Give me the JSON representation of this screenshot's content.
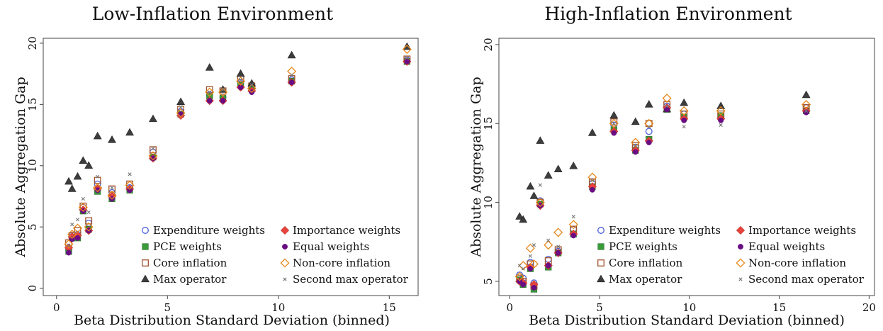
{
  "chart_data": [
    {
      "type": "scatter",
      "title": "Low-Inflation Environment",
      "xlabel": "Beta Distribution Standard Deviation (binned)",
      "ylabel": "Absolute Aggregation Gap",
      "xlim": [
        -0.6,
        16.3
      ],
      "ylim": [
        -0.6,
        20.4
      ],
      "xticks": [
        0,
        5,
        10,
        15
      ],
      "yticks": [
        0,
        5,
        10,
        15,
        20
      ],
      "legend_position": "bottom-right",
      "series": [
        {
          "name": "Expenditure weights",
          "marker": "circle-open",
          "color": "#4a5fd8",
          "x": [
            0.55,
            0.7,
            0.95,
            1.2,
            1.45,
            1.85,
            2.5,
            3.3,
            4.35,
            5.6,
            6.9,
            7.5,
            8.3,
            8.8,
            10.6,
            15.8
          ],
          "y": [
            3.1,
            4.3,
            4.4,
            6.6,
            5.3,
            8.5,
            7.8,
            8.2,
            11.1,
            14.4,
            15.8,
            15.6,
            16.8,
            16.2,
            17.0,
            18.6
          ]
        },
        {
          "name": "PCE weights",
          "marker": "square-filled",
          "color": "#3a9b3a",
          "x": [
            0.55,
            0.7,
            0.95,
            1.2,
            1.45,
            1.85,
            2.5,
            3.3,
            4.35,
            5.6,
            6.9,
            7.5,
            8.3,
            8.8,
            10.6,
            15.8
          ],
          "y": [
            3.0,
            4.1,
            4.1,
            6.3,
            4.8,
            7.9,
            7.3,
            8.0,
            10.7,
            14.2,
            15.7,
            15.5,
            16.6,
            16.3,
            16.9,
            18.5
          ]
        },
        {
          "name": "Core inflation",
          "marker": "square-open",
          "color": "#a0522d",
          "x": [
            0.55,
            0.7,
            0.95,
            1.2,
            1.45,
            1.85,
            2.5,
            3.3,
            4.35,
            5.6,
            6.9,
            7.5,
            8.3,
            8.8,
            10.6,
            15.8
          ],
          "y": [
            3.7,
            4.3,
            4.7,
            6.7,
            5.5,
            8.8,
            8.1,
            8.5,
            11.3,
            14.6,
            16.2,
            16.1,
            17.1,
            16.5,
            17.1,
            18.7
          ]
        },
        {
          "name": "Max operator",
          "marker": "triangle-filled",
          "color": "#3d3d3d",
          "x": [
            0.55,
            0.7,
            0.95,
            1.2,
            1.45,
            1.85,
            2.5,
            3.3,
            4.35,
            5.6,
            6.9,
            7.5,
            8.3,
            8.8,
            10.6,
            15.8
          ],
          "y": [
            8.7,
            8.1,
            9.1,
            10.4,
            10.0,
            12.4,
            12.1,
            12.7,
            13.8,
            15.2,
            18.0,
            16.2,
            17.5,
            16.7,
            19.0,
            19.7
          ]
        },
        {
          "name": "Importance weights",
          "marker": "diamond-filled",
          "color": "#e8443c",
          "x": [
            0.55,
            0.7,
            0.95,
            1.2,
            1.45,
            1.85,
            2.5,
            3.3,
            4.35,
            5.6,
            6.9,
            7.5,
            8.3,
            8.8,
            10.6,
            15.8
          ],
          "y": [
            3.3,
            4.2,
            4.3,
            6.4,
            4.7,
            8.1,
            7.5,
            8.1,
            10.6,
            14.1,
            15.3,
            15.3,
            16.4,
            16.1,
            16.8,
            18.5
          ]
        },
        {
          "name": "Equal weights",
          "marker": "circle-filled",
          "color": "#6a0d83",
          "x": [
            0.55,
            0.7,
            0.95,
            1.2,
            1.45,
            1.85,
            2.5,
            3.3,
            4.35,
            5.6,
            6.9,
            7.5,
            8.3,
            8.8,
            10.6,
            15.8
          ],
          "y": [
            2.9,
            4.0,
            4.1,
            6.3,
            4.7,
            8.0,
            7.3,
            8.0,
            10.6,
            14.2,
            15.3,
            15.3,
            16.4,
            16.0,
            16.8,
            18.5
          ]
        },
        {
          "name": "Non-core inflation",
          "marker": "diamond-open",
          "color": "#e8891c",
          "x": [
            0.55,
            0.7,
            0.95,
            1.2,
            1.45,
            1.85,
            2.5,
            3.3,
            4.35,
            5.6,
            6.9,
            7.5,
            8.3,
            8.8,
            10.6,
            15.8
          ],
          "y": [
            3.6,
            4.4,
            4.9,
            6.6,
            5.0,
            8.2,
            7.6,
            8.4,
            10.8,
            14.3,
            16.0,
            16.0,
            16.9,
            16.3,
            17.7,
            19.5
          ]
        },
        {
          "name": "Second max operator",
          "marker": "cross",
          "color": "#777777",
          "x": [
            0.55,
            0.7,
            0.95,
            1.2,
            1.45,
            1.85,
            2.5,
            3.3,
            4.35,
            5.6,
            6.9,
            7.5,
            8.3,
            8.8,
            10.6,
            15.8
          ],
          "y": [
            3.5,
            5.2,
            5.6,
            7.3,
            6.2,
            9.1,
            8.2,
            9.3,
            11.4,
            14.8,
            16.0,
            16.2,
            17.0,
            16.6,
            17.4,
            18.8
          ]
        }
      ]
    },
    {
      "type": "scatter",
      "title": "High-Inflation Environment",
      "xlabel": "Beta Distribution Standard Deviation (binned)",
      "ylabel": "Absolute Aggregation Gap",
      "xlim": [
        -0.6,
        20.3
      ],
      "ylim": [
        4.1,
        20.4
      ],
      "xticks": [
        0,
        5,
        10,
        15,
        20
      ],
      "yticks": [
        5,
        10,
        15,
        20
      ],
      "legend_position": "bottom-right",
      "series": [
        {
          "name": "Expenditure weights",
          "marker": "circle-open",
          "color": "#4a5fd8",
          "x": [
            0.55,
            0.75,
            1.15,
            1.35,
            1.7,
            2.15,
            2.7,
            3.55,
            4.6,
            5.8,
            7.0,
            7.75,
            8.75,
            9.7,
            11.75,
            16.5
          ],
          "y": [
            5.4,
            5.2,
            6.2,
            4.9,
            10.1,
            6.4,
            6.9,
            8.3,
            11.2,
            14.9,
            13.5,
            14.5,
            16.1,
            15.6,
            15.4,
            16.0
          ]
        },
        {
          "name": "PCE weights",
          "marker": "square-filled",
          "color": "#3a9b3a",
          "x": [
            0.55,
            0.75,
            1.15,
            1.35,
            1.7,
            2.15,
            2.7,
            3.55,
            4.6,
            5.8,
            7.0,
            7.75,
            8.75,
            9.7,
            11.75,
            16.5
          ],
          "y": [
            5.1,
            4.8,
            5.8,
            4.5,
            9.9,
            5.9,
            6.8,
            8.0,
            11.0,
            14.6,
            13.3,
            14.0,
            15.9,
            15.4,
            15.5,
            15.8
          ]
        },
        {
          "name": "Core inflation",
          "marker": "square-open",
          "color": "#a0522d",
          "x": [
            0.55,
            0.75,
            1.15,
            1.35,
            1.7,
            2.15,
            2.7,
            3.55,
            4.6,
            5.8,
            7.0,
            7.75,
            8.75,
            9.7,
            11.75,
            16.5
          ],
          "y": [
            5.2,
            5.0,
            6.1,
            4.7,
            10.0,
            6.3,
            7.0,
            8.3,
            11.3,
            15.1,
            13.6,
            15.0,
            16.2,
            15.6,
            15.6,
            16.0
          ]
        },
        {
          "name": "Max operator",
          "marker": "triangle-filled",
          "color": "#3d3d3d",
          "x": [
            0.55,
            0.75,
            1.15,
            1.35,
            1.7,
            2.15,
            2.7,
            3.55,
            4.6,
            5.8,
            7.0,
            7.75,
            8.75,
            9.7,
            11.75,
            16.5
          ],
          "y": [
            9.1,
            8.9,
            11.0,
            10.4,
            13.9,
            11.7,
            12.1,
            12.3,
            14.4,
            15.5,
            15.1,
            16.2,
            15.9,
            16.3,
            16.1,
            16.8
          ]
        },
        {
          "name": "Importance weights",
          "marker": "diamond-filled",
          "color": "#e8443c",
          "x": [
            0.55,
            0.75,
            1.15,
            1.35,
            1.7,
            2.15,
            2.7,
            3.55,
            4.6,
            5.8,
            7.0,
            7.75,
            8.75,
            9.7,
            11.75,
            16.5
          ],
          "y": [
            5.0,
            4.9,
            5.9,
            4.8,
            9.8,
            6.0,
            6.8,
            8.0,
            11.0,
            14.5,
            13.3,
            13.9,
            16.0,
            15.3,
            15.3,
            15.8
          ]
        },
        {
          "name": "Equal weights",
          "marker": "circle-filled",
          "color": "#6a0d83",
          "x": [
            0.55,
            0.75,
            1.15,
            1.35,
            1.7,
            2.15,
            2.7,
            3.55,
            4.6,
            5.8,
            7.0,
            7.75,
            8.75,
            9.7,
            11.75,
            16.5
          ],
          "y": [
            5.0,
            4.8,
            5.8,
            4.6,
            9.8,
            6.0,
            6.8,
            7.9,
            10.8,
            14.4,
            13.2,
            13.8,
            15.9,
            15.2,
            15.2,
            15.7
          ]
        },
        {
          "name": "Non-core inflation",
          "marker": "diamond-open",
          "color": "#e8891c",
          "x": [
            0.55,
            0.75,
            1.15,
            1.35,
            1.7,
            2.15,
            2.7,
            3.55,
            4.6,
            5.8,
            7.0,
            7.75,
            8.75,
            9.7,
            11.75,
            16.5
          ],
          "y": [
            5.3,
            6.0,
            7.1,
            6.1,
            10.0,
            7.3,
            8.1,
            8.6,
            11.6,
            15.0,
            13.8,
            15.0,
            16.6,
            15.8,
            15.8,
            16.2
          ]
        },
        {
          "name": "Second max operator",
          "marker": "cross",
          "color": "#777777",
          "x": [
            0.55,
            0.75,
            1.15,
            1.35,
            1.7,
            2.15,
            2.7,
            3.55,
            4.6,
            5.8,
            7.0,
            7.75,
            8.75,
            9.7,
            11.75,
            16.5
          ],
          "y": [
            6.0,
            5.8,
            6.6,
            7.3,
            11.1,
            7.6,
            7.2,
            9.1,
            11.4,
            15.0,
            13.6,
            14.8,
            16.1,
            14.8,
            14.9,
            15.8
          ]
        }
      ]
    }
  ]
}
